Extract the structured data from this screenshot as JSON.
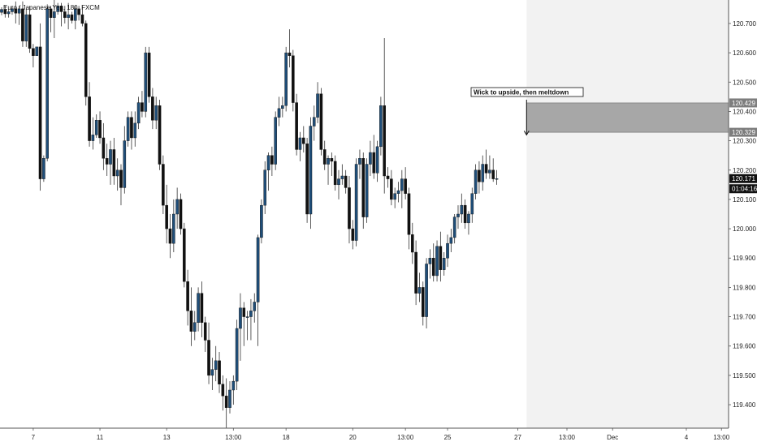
{
  "header": {
    "title": "Euro / Japanese Yen, 180, FXCM"
  },
  "annotation": {
    "text": "Wick to upside, then meltdown"
  },
  "price_tags": {
    "last_price": "120.171",
    "countdown": "01:04:16",
    "zone_top": "120.429",
    "zone_bottom": "120.329"
  },
  "colors": {
    "up": "#1f4e79",
    "down": "#111111",
    "zone": "#a7a7a7",
    "forecast_bg": "#f2f2f2",
    "axis": "#555555",
    "grid": "#e6e6e6"
  },
  "chart_data": {
    "type": "candlestick",
    "symbol": "Euro / Japanese Yen, 180, FXCM",
    "ylim": [
      119.32,
      120.78
    ],
    "yticks": [
      "120.700",
      "120.600",
      "120.500",
      "120.400",
      "120.300",
      "120.200",
      "120.100",
      "120.000",
      "119.900",
      "119.800",
      "119.700",
      "119.600",
      "119.500",
      "119.400"
    ],
    "xtick_labels": [
      {
        "label": "7",
        "bar": 9
      },
      {
        "label": "11",
        "bar": 28
      },
      {
        "label": "13",
        "bar": 47
      },
      {
        "label": "13:00",
        "bar": 66
      },
      {
        "label": "18",
        "bar": 81
      },
      {
        "label": "20",
        "bar": 100
      },
      {
        "label": "13:00",
        "bar": 115
      },
      {
        "label": "25",
        "bar": 127
      },
      {
        "label": "27",
        "bar": 147
      },
      {
        "label": "13:00",
        "bar": 161
      },
      {
        "label": "Dec",
        "bar": 174
      },
      {
        "label": "4",
        "bar": 195
      },
      {
        "label": "13:00",
        "bar": 205
      }
    ],
    "forecast_start_bar": 149.5,
    "zone": {
      "from_bar": 149.5,
      "top": 120.429,
      "bottom": 120.329
    },
    "annotation_arrow": {
      "bar": 149.5,
      "from": 120.44,
      "to": 120.32
    },
    "last_price": 120.171,
    "candles": [
      [
        120.738,
        120.755,
        120.728,
        120.748
      ],
      [
        120.748,
        120.76,
        120.72,
        120.733
      ],
      [
        120.733,
        120.75,
        120.72,
        120.74
      ],
      [
        120.74,
        120.76,
        120.73,
        120.75
      ],
      [
        120.75,
        120.775,
        120.7,
        120.735
      ],
      [
        120.735,
        120.76,
        120.695,
        120.75
      ],
      [
        120.75,
        120.775,
        120.62,
        120.64
      ],
      [
        120.64,
        120.75,
        120.62,
        120.73
      ],
      [
        120.73,
        120.76,
        120.6,
        120.615
      ],
      [
        120.615,
        120.63,
        120.55,
        120.59
      ],
      [
        120.59,
        120.62,
        120.59,
        120.62
      ],
      [
        120.62,
        120.7,
        120.13,
        120.17
      ],
      [
        120.17,
        120.25,
        120.16,
        120.24
      ],
      [
        120.24,
        120.765,
        120.23,
        120.75
      ],
      [
        120.75,
        120.76,
        120.67,
        120.72
      ],
      [
        120.72,
        120.78,
        120.65,
        120.74
      ],
      [
        120.74,
        120.77,
        120.73,
        120.76
      ],
      [
        120.76,
        120.77,
        120.69,
        120.74
      ],
      [
        120.74,
        120.76,
        120.7,
        120.72
      ],
      [
        120.72,
        120.77,
        120.68,
        120.73
      ],
      [
        120.73,
        120.74,
        120.7,
        120.71
      ],
      [
        120.71,
        120.76,
        120.68,
        120.75
      ],
      [
        120.75,
        120.76,
        120.71,
        120.73
      ],
      [
        120.73,
        120.76,
        120.69,
        120.7
      ],
      [
        120.7,
        120.71,
        120.42,
        120.45
      ],
      [
        120.45,
        120.5,
        120.28,
        120.3
      ],
      [
        120.3,
        120.38,
        120.27,
        120.32
      ],
      [
        120.32,
        120.39,
        120.31,
        120.37
      ],
      [
        120.37,
        120.4,
        120.29,
        120.31
      ],
      [
        120.31,
        120.36,
        120.2,
        120.24
      ],
      [
        120.24,
        120.29,
        120.18,
        120.22
      ],
      [
        120.22,
        120.3,
        120.15,
        120.27
      ],
      [
        120.27,
        120.31,
        120.15,
        120.18
      ],
      [
        120.18,
        120.24,
        120.13,
        120.2
      ],
      [
        120.2,
        120.22,
        120.08,
        120.14
      ],
      [
        120.14,
        120.35,
        120.12,
        120.3
      ],
      [
        120.3,
        120.4,
        120.28,
        120.38
      ],
      [
        120.38,
        120.4,
        120.27,
        120.31
      ],
      [
        120.31,
        120.4,
        120.28,
        120.36
      ],
      [
        120.36,
        120.45,
        120.34,
        120.43
      ],
      [
        120.43,
        120.47,
        120.38,
        120.4
      ],
      [
        120.4,
        120.62,
        120.38,
        120.6
      ],
      [
        120.6,
        120.62,
        120.43,
        120.45
      ],
      [
        120.45,
        120.48,
        120.34,
        120.37
      ],
      [
        120.37,
        120.45,
        120.34,
        120.42
      ],
      [
        120.42,
        120.44,
        120.2,
        120.22
      ],
      [
        120.22,
        120.25,
        120.05,
        120.08
      ],
      [
        120.08,
        120.15,
        119.95,
        120.0
      ],
      [
        120.0,
        120.05,
        119.9,
        119.95
      ],
      [
        119.95,
        120.1,
        119.92,
        120.05
      ],
      [
        120.05,
        120.14,
        120.0,
        120.1
      ],
      [
        120.1,
        120.12,
        119.98,
        120.0
      ],
      [
        120.0,
        120.02,
        119.8,
        119.82
      ],
      [
        119.82,
        119.86,
        119.67,
        119.72
      ],
      [
        119.72,
        119.8,
        119.6,
        119.65
      ],
      [
        119.65,
        119.72,
        119.62,
        119.68
      ],
      [
        119.68,
        119.8,
        119.65,
        119.78
      ],
      [
        119.78,
        119.82,
        119.63,
        119.68
      ],
      [
        119.68,
        119.7,
        119.58,
        119.62
      ],
      [
        119.62,
        119.68,
        119.47,
        119.5
      ],
      [
        119.5,
        119.56,
        119.45,
        119.52
      ],
      [
        119.52,
        119.6,
        119.48,
        119.55
      ],
      [
        119.55,
        119.58,
        119.44,
        119.47
      ],
      [
        119.47,
        119.5,
        119.38,
        119.43
      ],
      [
        119.43,
        119.49,
        119.32,
        119.39
      ],
      [
        119.39,
        119.48,
        119.37,
        119.45
      ],
      [
        119.45,
        119.5,
        119.4,
        119.48
      ],
      [
        119.48,
        119.69,
        119.45,
        119.66
      ],
      [
        119.66,
        119.78,
        119.55,
        119.73
      ],
      [
        119.73,
        119.75,
        119.6,
        119.7
      ],
      [
        119.7,
        119.72,
        119.62,
        119.7
      ],
      [
        119.7,
        119.76,
        119.62,
        119.72
      ],
      [
        119.72,
        119.78,
        119.68,
        119.75
      ],
      [
        119.75,
        119.98,
        119.6,
        119.97
      ],
      [
        119.97,
        120.1,
        119.95,
        120.08
      ],
      [
        120.08,
        120.23,
        120.05,
        120.2
      ],
      [
        120.2,
        120.26,
        120.13,
        120.25
      ],
      [
        120.25,
        120.28,
        120.18,
        120.22
      ],
      [
        120.22,
        120.4,
        120.2,
        120.38
      ],
      [
        120.38,
        120.45,
        120.35,
        120.41
      ],
      [
        120.41,
        120.45,
        120.38,
        120.42
      ],
      [
        120.42,
        120.62,
        120.4,
        120.6
      ],
      [
        120.6,
        120.68,
        120.55,
        120.59
      ],
      [
        120.59,
        120.61,
        120.4,
        120.43
      ],
      [
        120.43,
        120.46,
        120.25,
        120.27
      ],
      [
        120.27,
        120.33,
        120.23,
        120.31
      ],
      [
        120.31,
        120.35,
        120.26,
        120.29
      ],
      [
        120.29,
        120.31,
        120.02,
        120.05
      ],
      [
        120.05,
        120.38,
        120.0,
        120.35
      ],
      [
        120.35,
        120.42,
        120.3,
        120.38
      ],
      [
        120.38,
        120.5,
        120.36,
        120.46
      ],
      [
        120.46,
        120.48,
        120.25,
        120.27
      ],
      [
        120.27,
        120.3,
        120.2,
        120.22
      ],
      [
        120.22,
        120.25,
        120.15,
        120.24
      ],
      [
        120.24,
        120.26,
        120.18,
        120.23
      ],
      [
        120.23,
        120.25,
        120.13,
        120.15
      ],
      [
        120.15,
        120.2,
        120.1,
        120.17
      ],
      [
        120.17,
        120.22,
        120.15,
        120.18
      ],
      [
        120.18,
        120.2,
        120.12,
        120.14
      ],
      [
        120.14,
        120.18,
        119.95,
        120.0
      ],
      [
        120.0,
        120.03,
        119.93,
        119.96
      ],
      [
        119.96,
        120.24,
        119.94,
        120.22
      ],
      [
        120.22,
        120.27,
        120.17,
        120.24
      ],
      [
        120.24,
        120.26,
        120.0,
        120.04
      ],
      [
        120.04,
        120.24,
        120.02,
        120.22
      ],
      [
        120.22,
        120.3,
        120.18,
        120.26
      ],
      [
        120.26,
        120.32,
        120.17,
        120.19
      ],
      [
        120.19,
        120.3,
        120.16,
        120.28
      ],
      [
        120.28,
        120.45,
        120.25,
        120.42
      ],
      [
        120.42,
        120.65,
        120.12,
        120.18
      ],
      [
        120.18,
        120.21,
        120.14,
        120.17
      ],
      [
        120.17,
        120.2,
        120.08,
        120.1
      ],
      [
        120.1,
        120.14,
        120.07,
        120.12
      ],
      [
        120.12,
        120.16,
        120.09,
        120.13
      ],
      [
        120.13,
        120.2,
        120.07,
        120.17
      ],
      [
        120.17,
        120.21,
        120.1,
        120.12
      ],
      [
        120.12,
        120.14,
        119.93,
        119.98
      ],
      [
        119.98,
        120.02,
        119.88,
        119.92
      ],
      [
        119.92,
        119.96,
        119.74,
        119.78
      ],
      [
        119.78,
        119.85,
        119.75,
        119.8
      ],
      [
        119.8,
        119.82,
        119.67,
        119.7
      ],
      [
        119.7,
        119.9,
        119.66,
        119.88
      ],
      [
        119.88,
        119.93,
        119.83,
        119.9
      ],
      [
        119.9,
        119.95,
        119.82,
        119.84
      ],
      [
        119.84,
        119.96,
        119.82,
        119.94
      ],
      [
        119.94,
        119.99,
        119.82,
        119.86
      ],
      [
        119.86,
        119.92,
        119.84,
        119.9
      ],
      [
        119.9,
        119.98,
        119.87,
        119.95
      ],
      [
        119.95,
        120.0,
        119.92,
        119.97
      ],
      [
        119.97,
        120.05,
        119.95,
        120.04
      ],
      [
        120.04,
        120.08,
        120.0,
        120.05
      ],
      [
        120.05,
        120.12,
        120.02,
        120.08
      ],
      [
        120.08,
        120.1,
        120.0,
        120.02
      ],
      [
        120.02,
        120.06,
        119.98,
        120.05
      ],
      [
        120.05,
        120.14,
        120.02,
        120.12
      ],
      [
        120.12,
        120.22,
        120.1,
        120.2
      ],
      [
        120.2,
        120.23,
        120.12,
        120.16
      ],
      [
        120.16,
        120.25,
        120.13,
        120.22
      ],
      [
        120.22,
        120.27,
        120.17,
        120.19
      ],
      [
        120.19,
        120.25,
        120.17,
        120.2
      ],
      [
        120.2,
        120.24,
        120.16,
        120.17
      ],
      [
        120.17,
        120.2,
        120.15,
        120.171
      ]
    ]
  }
}
